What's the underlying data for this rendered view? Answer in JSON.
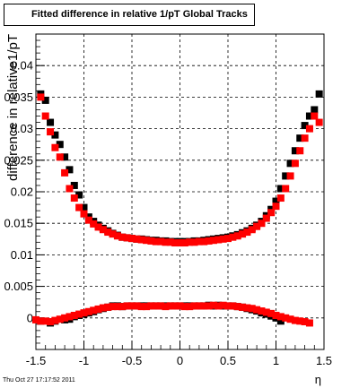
{
  "title": "Fitted difference in relative 1/pT  Global Tracks",
  "timestamp": "Thu Oct 27 17:17:52 2011",
  "chart_data": {
    "type": "scatter",
    "title": "Fitted difference in relative 1/pT  Global Tracks",
    "xlabel": "η",
    "ylabel": "difference in relative1/pT",
    "xlim": [
      -1.5,
      1.5
    ],
    "ylim": [
      -0.005,
      0.045
    ],
    "grid": true,
    "x_ticks": [
      "-1.5",
      "-1",
      "-0.5",
      "0",
      "0.5",
      "1",
      "1.5"
    ],
    "y_ticks": [
      "0",
      "0.005",
      "0.01",
      "0.015",
      "0.02",
      "0.025",
      "0.03",
      "0.035",
      "0.04"
    ],
    "series": [
      {
        "color": "#000000",
        "x": [
          -1.45,
          -1.4,
          -1.35,
          -1.3,
          -1.25,
          -1.2,
          -1.15,
          -1.1,
          -1.05,
          -1.0,
          -0.95,
          -0.9,
          -0.85,
          -0.8,
          -0.75,
          -0.7,
          -0.65,
          -0.6,
          -0.55,
          -0.5,
          -0.45,
          -0.4,
          -0.35,
          -0.3,
          -0.25,
          -0.2,
          -0.15,
          -0.1,
          -0.05,
          0.0,
          0.05,
          0.1,
          0.15,
          0.2,
          0.25,
          0.3,
          0.35,
          0.4,
          0.45,
          0.5,
          0.55,
          0.6,
          0.65,
          0.7,
          0.75,
          0.8,
          0.85,
          0.9,
          0.95,
          1.0,
          1.05,
          1.1,
          1.15,
          1.2,
          1.25,
          1.3,
          1.35,
          1.4,
          1.45
        ],
        "y": [
          0.0355,
          0.0345,
          0.031,
          0.029,
          0.0275,
          0.0255,
          0.0235,
          0.021,
          0.0195,
          0.0175,
          0.016,
          0.0153,
          0.0147,
          0.0142,
          0.0138,
          0.0134,
          0.0131,
          0.0128,
          0.0127,
          0.0126,
          0.0125,
          0.0125,
          0.0124,
          0.0123,
          0.0123,
          0.0122,
          0.0122,
          0.0121,
          0.0121,
          0.0121,
          0.0121,
          0.0121,
          0.0122,
          0.0122,
          0.0123,
          0.0124,
          0.0125,
          0.0126,
          0.0127,
          0.0128,
          0.013,
          0.0132,
          0.0135,
          0.0138,
          0.0142,
          0.0147,
          0.0153,
          0.0162,
          0.0172,
          0.0185,
          0.0205,
          0.0225,
          0.0245,
          0.0265,
          0.0285,
          0.0305,
          0.032,
          0.033,
          0.0355
        ]
      },
      {
        "color": "#ff0000",
        "x": [
          -1.45,
          -1.4,
          -1.35,
          -1.3,
          -1.25,
          -1.2,
          -1.15,
          -1.1,
          -1.05,
          -1.0,
          -0.95,
          -0.9,
          -0.85,
          -0.8,
          -0.75,
          -0.7,
          -0.65,
          -0.6,
          -0.55,
          -0.5,
          -0.45,
          -0.4,
          -0.35,
          -0.3,
          -0.25,
          -0.2,
          -0.15,
          -0.1,
          -0.05,
          0.0,
          0.05,
          0.1,
          0.15,
          0.2,
          0.25,
          0.3,
          0.35,
          0.4,
          0.45,
          0.5,
          0.55,
          0.6,
          0.65,
          0.7,
          0.75,
          0.8,
          0.85,
          0.9,
          0.95,
          1.0,
          1.05,
          1.1,
          1.15,
          1.2,
          1.25,
          1.3,
          1.35,
          1.4,
          1.45
        ],
        "y": [
          0.035,
          0.032,
          0.0295,
          0.027,
          0.0255,
          0.023,
          0.0205,
          0.019,
          0.0175,
          0.0165,
          0.0155,
          0.0149,
          0.0144,
          0.014,
          0.0136,
          0.0133,
          0.013,
          0.0128,
          0.0127,
          0.0126,
          0.0125,
          0.0124,
          0.0123,
          0.0122,
          0.0121,
          0.0121,
          0.012,
          0.012,
          0.0119,
          0.0119,
          0.0119,
          0.012,
          0.012,
          0.0121,
          0.0121,
          0.0122,
          0.0123,
          0.0124,
          0.0125,
          0.0126,
          0.0128,
          0.013,
          0.0133,
          0.0136,
          0.014,
          0.0145,
          0.015,
          0.0158,
          0.0167,
          0.0177,
          0.019,
          0.0205,
          0.0225,
          0.0245,
          0.0265,
          0.0285,
          0.03,
          0.032,
          0.031
        ]
      },
      {
        "color": "#000000",
        "x": [
          -1.45,
          -1.35,
          -1.3,
          -1.2,
          -1.15,
          -1.1,
          -1.05,
          -1.0,
          -0.95,
          -0.9,
          -0.85,
          -0.8,
          -0.75,
          -0.7,
          -0.65,
          -0.6,
          -0.55,
          -0.5,
          -0.45,
          -0.4,
          -0.35,
          -0.3,
          -0.25,
          -0.2,
          -0.15,
          -0.1,
          -0.05,
          0.0,
          0.05,
          0.1,
          0.15,
          0.2,
          0.25,
          0.3,
          0.35,
          0.4,
          0.45,
          0.5,
          0.55,
          0.6,
          0.65,
          0.7,
          0.75,
          0.8,
          0.85,
          0.9,
          0.95,
          1.0,
          1.05
        ],
        "y": [
          -0.0005,
          -0.0008,
          -0.0005,
          -0.0003,
          -0.0002,
          0.0002,
          0.0004,
          0.0006,
          0.0008,
          0.001,
          0.0013,
          0.0015,
          0.0017,
          0.0019,
          0.0019,
          0.0018,
          0.0019,
          0.0019,
          0.0019,
          0.0019,
          0.0019,
          0.0019,
          0.0019,
          0.0019,
          0.0019,
          0.0019,
          0.0019,
          0.0019,
          0.0019,
          0.0019,
          0.0019,
          0.0019,
          0.0019,
          0.002,
          0.0019,
          0.002,
          0.0019,
          0.0019,
          0.0019,
          0.0018,
          0.0017,
          0.0015,
          0.0013,
          0.0011,
          0.0008,
          0.0006,
          0.0003,
          0.0,
          -0.0005
        ]
      },
      {
        "color": "#ff0000",
        "x": [
          -1.5,
          -1.45,
          -1.4,
          -1.35,
          -1.3,
          -1.25,
          -1.2,
          -1.15,
          -1.1,
          -1.05,
          -1.0,
          -0.95,
          -0.9,
          -0.85,
          -0.8,
          -0.75,
          -0.7,
          -0.65,
          -0.6,
          -0.55,
          -0.5,
          -0.45,
          -0.4,
          -0.35,
          -0.3,
          -0.25,
          -0.2,
          -0.15,
          -0.1,
          -0.05,
          0.0,
          0.05,
          0.1,
          0.15,
          0.2,
          0.25,
          0.3,
          0.35,
          0.4,
          0.45,
          0.5,
          0.55,
          0.6,
          0.65,
          0.7,
          0.75,
          0.8,
          0.85,
          0.9,
          0.95,
          1.0,
          1.05,
          1.1,
          1.15,
          1.2,
          1.25,
          1.3,
          1.35
        ],
        "y": [
          -0.0003,
          -0.0005,
          -0.0005,
          -0.0006,
          -0.0004,
          -0.0002,
          0.0,
          0.0002,
          0.0004,
          0.0006,
          0.0008,
          0.001,
          0.0012,
          0.0014,
          0.0016,
          0.0017,
          0.0018,
          0.0018,
          0.0018,
          0.0019,
          0.0019,
          0.0019,
          0.0018,
          0.0018,
          0.0019,
          0.0019,
          0.0019,
          0.0018,
          0.0019,
          0.0019,
          0.0019,
          0.0018,
          0.0018,
          0.0019,
          0.0019,
          0.0019,
          0.0019,
          0.002,
          0.0019,
          0.002,
          0.0019,
          0.0019,
          0.0018,
          0.0017,
          0.0016,
          0.0015,
          0.0013,
          0.0011,
          0.0009,
          0.0007,
          0.0004,
          0.0002,
          0.0,
          -0.0002,
          -0.0004,
          -0.0005,
          -0.0006,
          -0.0008
        ]
      }
    ]
  }
}
